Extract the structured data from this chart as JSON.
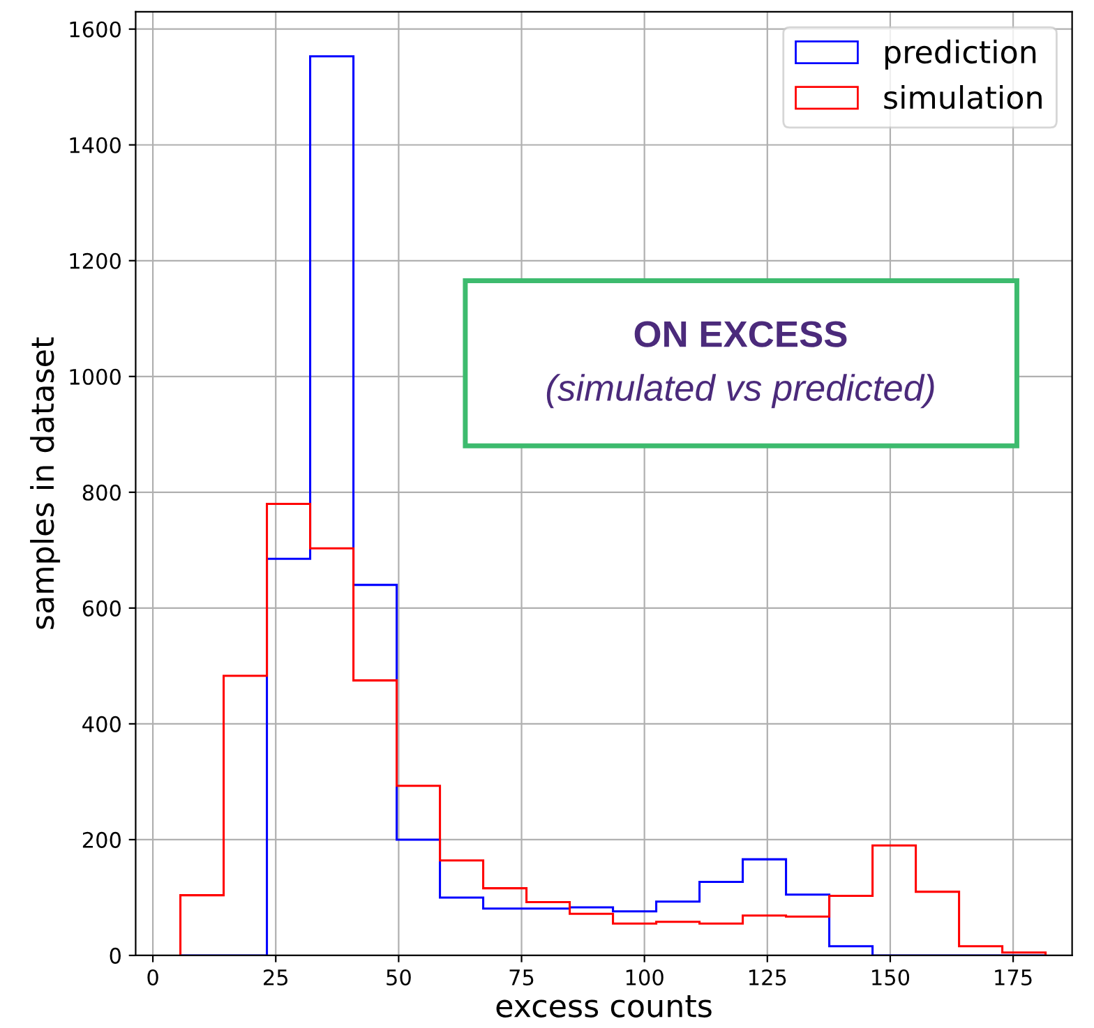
{
  "chart_data": {
    "type": "histogram",
    "xlabel": "excess counts",
    "ylabel": "samples in dataset",
    "annotations": [
      "ON EXCESS",
      "(simulated vs predicted)"
    ],
    "bins": [
      5.6,
      14.4,
      23.2,
      32.0,
      40.8,
      49.6,
      58.4,
      67.2,
      76.0,
      84.8,
      93.6,
      102.4,
      111.2,
      120.0,
      128.8,
      137.6,
      146.4,
      155.2,
      164.0,
      172.8,
      181.6
    ],
    "series": [
      {
        "name": "prediction",
        "color": "#0000ff",
        "values": [
          0,
          0,
          685,
          1553,
          640,
          200,
          100,
          81,
          81,
          83,
          76,
          93,
          127,
          166,
          105,
          16,
          0,
          0,
          0,
          0
        ]
      },
      {
        "name": "simulation",
        "color": "#ff0000",
        "values": [
          104,
          483,
          780,
          703,
          475,
          293,
          164,
          116,
          92,
          72,
          55,
          58,
          55,
          69,
          67,
          103,
          190,
          110,
          16,
          5
        ]
      }
    ],
    "xlim": [
      -3.5,
      187
    ],
    "ylim": [
      0,
      1630
    ],
    "xticks": [
      0,
      25,
      50,
      75,
      100,
      125,
      150,
      175
    ],
    "yticks": [
      0,
      200,
      400,
      600,
      800,
      1000,
      1200,
      1400,
      1600
    ],
    "grid": true,
    "legend": "top right"
  }
}
